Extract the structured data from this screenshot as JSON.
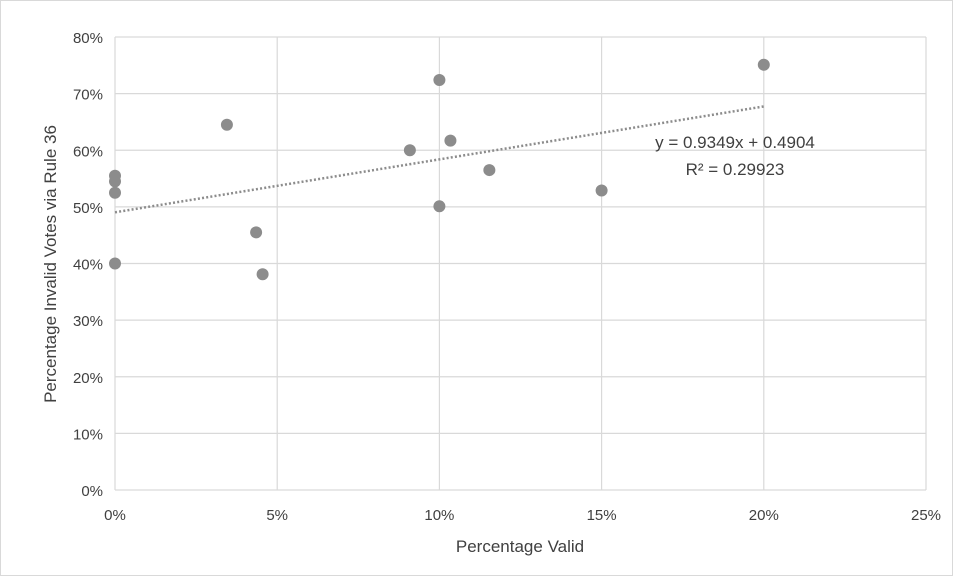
{
  "chart_data": {
    "type": "scatter",
    "title": "",
    "xlabel": "Percentage Valid",
    "ylabel": "Percentage Invalid Votes via Rule 36",
    "xlim": [
      0,
      0.25
    ],
    "ylim": [
      0,
      0.8
    ],
    "x_ticks": [
      0,
      0.05,
      0.1,
      0.15,
      0.2,
      0.25
    ],
    "x_tick_labels": [
      "0%",
      "5%",
      "10%",
      "15%",
      "20%",
      "25%"
    ],
    "y_ticks": [
      0,
      0.1,
      0.2,
      0.3,
      0.4,
      0.5,
      0.6,
      0.7,
      0.8
    ],
    "y_tick_labels": [
      "0%",
      "10%",
      "20%",
      "30%",
      "40%",
      "50%",
      "60%",
      "70%",
      "80%"
    ],
    "grid": true,
    "legend": "none",
    "marker_color": "#8c8c8c",
    "trendline_color": "#8c8c8c",
    "points": [
      {
        "x": 0.0,
        "y": 0.555
      },
      {
        "x": 0.0,
        "y": 0.545
      },
      {
        "x": 0.0,
        "y": 0.525
      },
      {
        "x": 0.0,
        "y": 0.4
      },
      {
        "x": 0.0345,
        "y": 0.645
      },
      {
        "x": 0.0435,
        "y": 0.455
      },
      {
        "x": 0.0455,
        "y": 0.381
      },
      {
        "x": 0.0909,
        "y": 0.6
      },
      {
        "x": 0.1,
        "y": 0.724
      },
      {
        "x": 0.1,
        "y": 0.501
      },
      {
        "x": 0.1034,
        "y": 0.617
      },
      {
        "x": 0.1154,
        "y": 0.565
      },
      {
        "x": 0.15,
        "y": 0.529
      },
      {
        "x": 0.2,
        "y": 0.751
      }
    ],
    "trendline": {
      "type": "linear",
      "slope": 0.9349,
      "intercept": 0.4904,
      "x_range": [
        0,
        0.2
      ],
      "style": "dotted"
    },
    "annotations": {
      "equation": "y = 0.9349x + 0.4904",
      "r_squared": "R² = 0.29923"
    }
  }
}
